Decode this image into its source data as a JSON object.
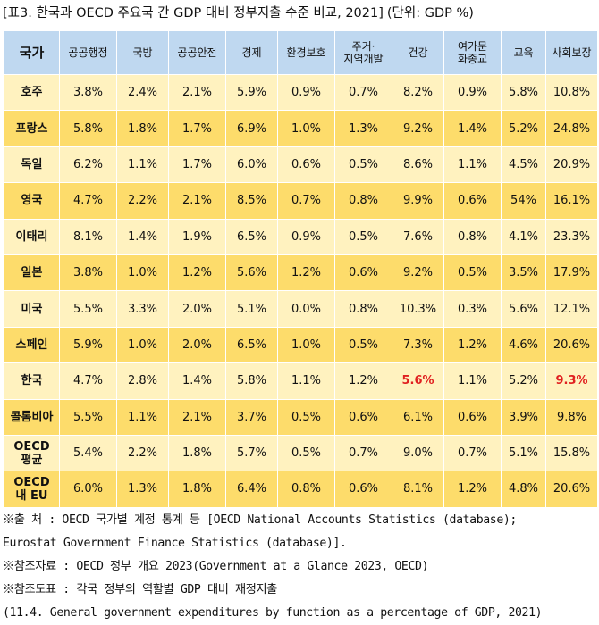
{
  "title": "[표3. 한국과 OECD 주요국 간 GDP 대비 정부지출 수준 비교, 2021]",
  "unit": "(단위: GDP %)",
  "table": {
    "headers": [
      "국가",
      "공공행정",
      "국방",
      "공공안전",
      "경제",
      "환경보호",
      "주거·\n지역개발",
      "건강",
      "여가문\n화종교",
      "교육",
      "사회보장"
    ],
    "rows": [
      {
        "country": "호주",
        "values": [
          "3.8%",
          "2.4%",
          "2.1%",
          "5.9%",
          "0.9%",
          "0.7%",
          "8.2%",
          "0.9%",
          "5.8%",
          "10.8%"
        ]
      },
      {
        "country": "프랑스",
        "values": [
          "5.8%",
          "1.8%",
          "1.7%",
          "6.9%",
          "1.0%",
          "1.3%",
          "9.2%",
          "1.4%",
          "5.2%",
          "24.8%"
        ]
      },
      {
        "country": "독일",
        "values": [
          "6.2%",
          "1.1%",
          "1.7%",
          "6.0%",
          "0.6%",
          "0.5%",
          "8.6%",
          "1.1%",
          "4.5%",
          "20.9%"
        ]
      },
      {
        "country": "영국",
        "values": [
          "4.7%",
          "2.2%",
          "2.1%",
          "8.5%",
          "0.7%",
          "0.8%",
          "9.9%",
          "0.6%",
          "54%",
          "16.1%"
        ]
      },
      {
        "country": "이태리",
        "values": [
          "8.1%",
          "1.4%",
          "1.9%",
          "6.5%",
          "0.9%",
          "0.5%",
          "7.6%",
          "0.8%",
          "4.1%",
          "23.3%"
        ]
      },
      {
        "country": "일본",
        "values": [
          "3.8%",
          "1.0%",
          "1.2%",
          "5.6%",
          "1.2%",
          "0.6%",
          "9.2%",
          "0.5%",
          "3.5%",
          "17.9%"
        ]
      },
      {
        "country": "미국",
        "values": [
          "5.5%",
          "3.3%",
          "2.0%",
          "5.1%",
          "0.0%",
          "0.8%",
          "10.3%",
          "0.3%",
          "5.6%",
          "12.1%"
        ]
      },
      {
        "country": "스페인",
        "values": [
          "5.9%",
          "1.0%",
          "2.0%",
          "6.5%",
          "1.0%",
          "0.5%",
          "7.3%",
          "1.2%",
          "4.6%",
          "20.6%"
        ]
      },
      {
        "country": "한국",
        "values": [
          "4.7%",
          "2.8%",
          "1.4%",
          "5.8%",
          "1.1%",
          "1.2%",
          "5.6%",
          "1.1%",
          "5.2%",
          "9.3%"
        ],
        "highlight": [
          6,
          9
        ]
      },
      {
        "country": "콜롬비아",
        "values": [
          "5.5%",
          "1.1%",
          "2.1%",
          "3.7%",
          "0.5%",
          "0.6%",
          "6.1%",
          "0.6%",
          "3.9%",
          "9.8%"
        ]
      },
      {
        "country": "OECD\n평균",
        "values": [
          "5.4%",
          "2.2%",
          "1.8%",
          "5.7%",
          "0.5%",
          "0.7%",
          "9.0%",
          "0.7%",
          "5.1%",
          "15.8%"
        ]
      },
      {
        "country": "OECD\n내 EU",
        "values": [
          "6.0%",
          "1.3%",
          "1.8%",
          "6.4%",
          "0.8%",
          "0.6%",
          "8.1%",
          "1.2%",
          "4.8%",
          "20.6%"
        ]
      }
    ]
  },
  "notes": [
    "※출  처 : OECD 국가별 계정 통계 등 [OECD National Accounts Statistics (database);",
    "Eurostat Government Finance Statistics (database)].",
    "※참조자료 : OECD 정부 개요 2023(Government at a Glance 2023, OECD)",
    "※참조도표 : 각국 정부의 역할별 GDP 대비 재정지출",
    "(11.4. General government expenditures by function as a percentage of GDP, 2021)"
  ],
  "colors": {
    "header_bg": "#bfd8f0",
    "row_light": "#fff2bf",
    "row_dark": "#fddc6b",
    "highlight_text": "#e02020"
  }
}
